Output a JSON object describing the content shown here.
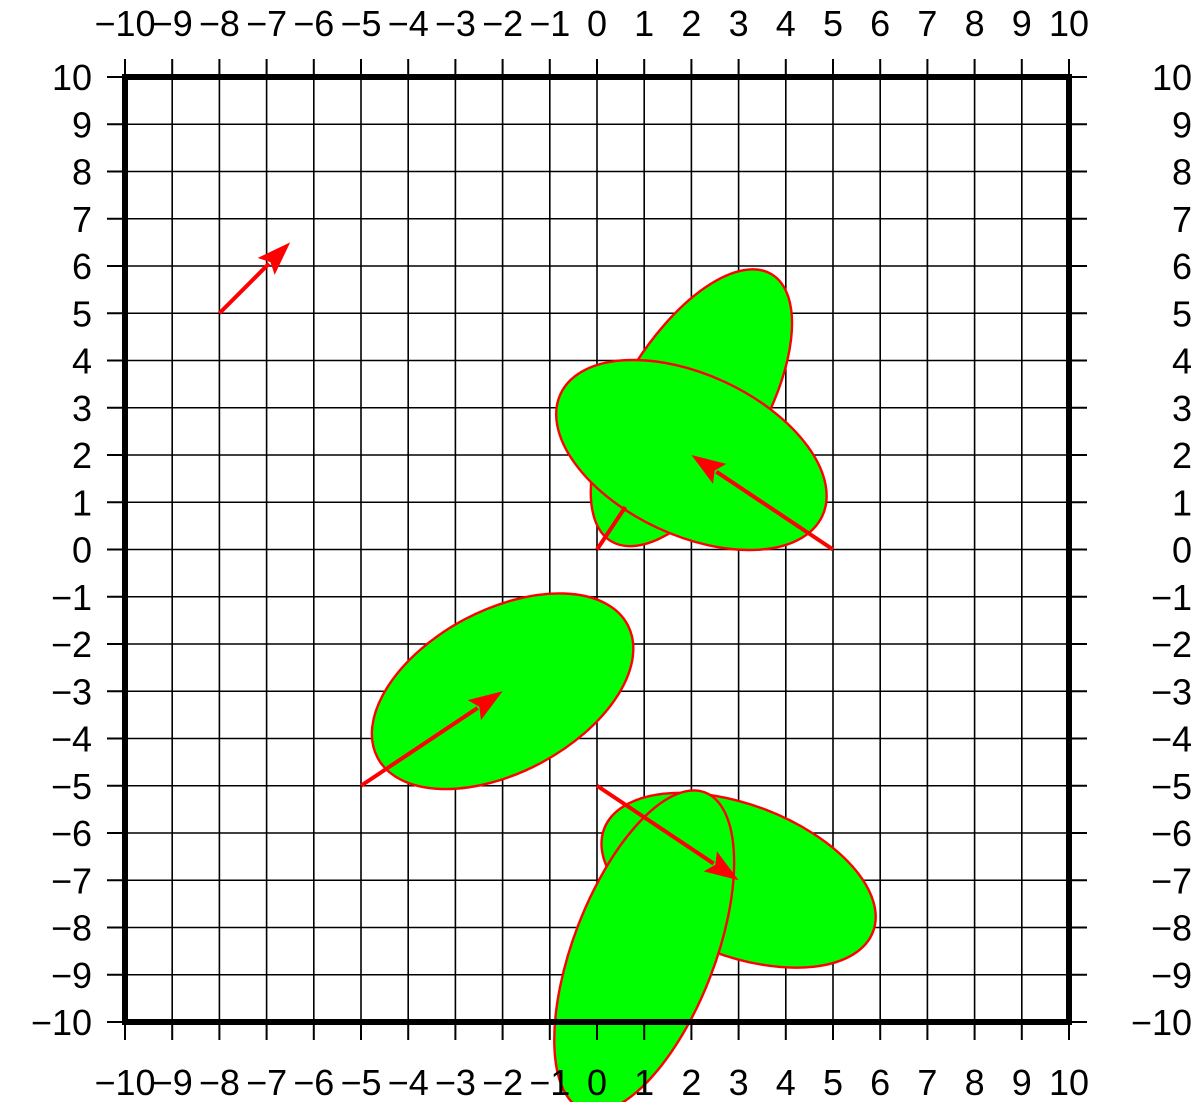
{
  "chart_data": {
    "type": "scatter",
    "title": "",
    "xlabel": "",
    "ylabel": "",
    "xlim": [
      -10,
      10
    ],
    "ylim": [
      -10,
      10
    ],
    "grid": true,
    "x_ticks": [
      -10,
      -9,
      -8,
      -7,
      -6,
      -5,
      -4,
      -3,
      -2,
      -1,
      0,
      1,
      2,
      3,
      4,
      5,
      6,
      7,
      8,
      9,
      10
    ],
    "y_ticks": [
      -10,
      -9,
      -8,
      -7,
      -6,
      -5,
      -4,
      -3,
      -2,
      -1,
      0,
      1,
      2,
      3,
      4,
      5,
      6,
      7,
      8,
      9,
      10
    ],
    "x_tick_labels": [
      "−10",
      "−9",
      "−8",
      "−7",
      "−6",
      "−5",
      "−4",
      "−3",
      "−2",
      "−1",
      "0",
      "1",
      "2",
      "3",
      "4",
      "5",
      "6",
      "7",
      "8",
      "9",
      "10"
    ],
    "y_tick_labels": [
      "−10",
      "−9",
      "−8",
      "−7",
      "−6",
      "−5",
      "−4",
      "−3",
      "−2",
      "−1",
      "0",
      "1",
      "2",
      "3",
      "4",
      "5",
      "6",
      "7",
      "8",
      "9",
      "10"
    ],
    "vectors": [
      {
        "x0": -8,
        "y0": 5,
        "x1": -6.5,
        "y1": 6.5
      },
      {
        "x0": 5,
        "y0": 0,
        "x1": 2,
        "y1": 2
      },
      {
        "x0": -5,
        "y0": -5,
        "x1": -2,
        "y1": -3
      },
      {
        "x0": 0,
        "y0": -5,
        "x1": 3,
        "y1": -7
      }
    ],
    "error_ellipses": [
      {
        "cx": 2,
        "cy": 3,
        "a": 3.3,
        "b": 1.5,
        "angle_deg": 59
      },
      {
        "cx": 2,
        "cy": 2,
        "a": 3.06,
        "b": 1.7,
        "angle_deg": -25
      },
      {
        "cx": -2,
        "cy": -3,
        "a": 3.0,
        "b": 1.72,
        "angle_deg": 28
      },
      {
        "cx": 3,
        "cy": -7,
        "a": 3.05,
        "b": 1.6,
        "angle_deg": -21
      },
      {
        "cx": 1.0,
        "cy": -8.5,
        "a": 3.6,
        "b": 1.5,
        "angle_deg": 69
      }
    ],
    "extra_segments": [
      {
        "x0": 0,
        "y0": 0,
        "x1": 0.6,
        "y1": 0.9
      }
    ],
    "colors": {
      "ellipse_fill": "#00ff00",
      "ellipse_stroke": "#ff0000",
      "vector": "#ff0000",
      "grid": "#000000",
      "frame": "#000000"
    }
  }
}
